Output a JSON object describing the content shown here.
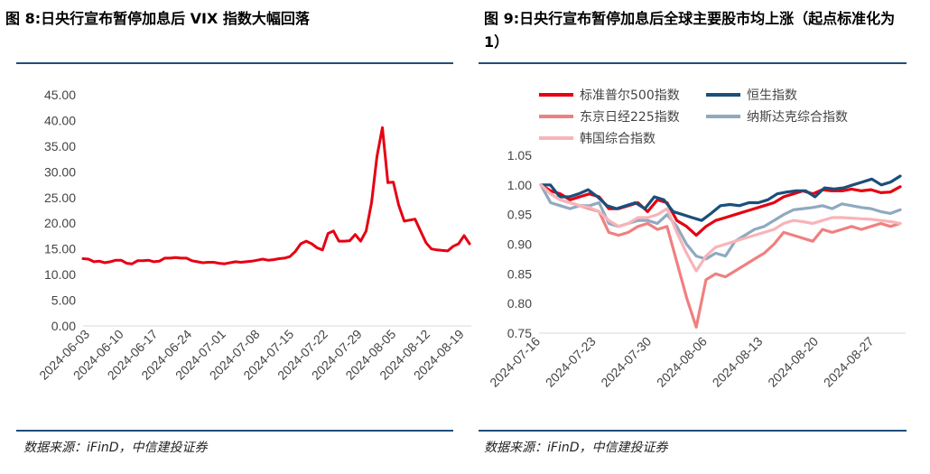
{
  "left": {
    "title": "图 8:日央行宣布暂停加息后 VIX 指数大幅回落",
    "source": "数据来源：iFinD，中信建投证券"
  },
  "right": {
    "title": "图 9:日央行宣布暂停加息后全球主要股市均上涨（起点标准化为 1）",
    "source": "数据来源：iFinD，中信建投证券"
  },
  "colors": {
    "rule": "#1f4e79"
  },
  "chart_data": [
    {
      "type": "line",
      "title": "",
      "ylim": [
        0,
        45
      ],
      "y_ticks": [
        "0.00",
        "5.00",
        "10.00",
        "15.00",
        "20.00",
        "25.00",
        "30.00",
        "35.00",
        "40.00",
        "45.00"
      ],
      "x_ticks": [
        "2024-06-03",
        "2024-06-10",
        "2024-06-17",
        "2024-06-24",
        "2024-07-01",
        "2024-07-08",
        "2024-07-15",
        "2024-07-22",
        "2024-07-29",
        "2024-08-05",
        "2024-08-12",
        "2024-08-19"
      ],
      "series": [
        {
          "color": "#e60012",
          "values": [
            13.1,
            13.0,
            12.5,
            12.6,
            12.3,
            12.5,
            12.8,
            12.8,
            12.2,
            12.1,
            12.7,
            12.7,
            12.8,
            12.5,
            12.6,
            13.2,
            13.2,
            13.3,
            13.2,
            13.2,
            12.7,
            12.5,
            12.3,
            12.4,
            12.4,
            12.2,
            12.1,
            12.3,
            12.5,
            12.4,
            12.5,
            12.6,
            12.8,
            13.0,
            12.8,
            12.9,
            13.1,
            13.2,
            13.5,
            14.5,
            16.0,
            16.5,
            16.0,
            15.2,
            14.8,
            18.0,
            18.5,
            16.5,
            16.5,
            16.6,
            17.8,
            16.5,
            18.5,
            24.0,
            33.0,
            38.6,
            27.9,
            28.0,
            23.5,
            20.4,
            20.6,
            20.8,
            18.5,
            16.2,
            15.0,
            14.8,
            14.7,
            14.6,
            15.5,
            16.0,
            17.6,
            16.0
          ]
        }
      ]
    },
    {
      "type": "line",
      "title": "",
      "ylim": [
        0.75,
        1.05
      ],
      "y_ticks": [
        "0.75",
        "0.80",
        "0.85",
        "0.90",
        "0.95",
        "1.00",
        "1.05"
      ],
      "x_ticks": [
        "2024-07-16",
        "2024-07-23",
        "2024-07-30",
        "2024-08-06",
        "2024-08-13",
        "2024-08-20",
        "2024-08-27"
      ],
      "legend": [
        "标准普尔500指数",
        "恒生指数",
        "东京日经225指数",
        "纳斯达克综合指数",
        "韩国综合指数"
      ],
      "series": [
        {
          "name": "标准普尔500指数",
          "color": "#e60012",
          "values": [
            1.0,
            0.99,
            0.985,
            0.975,
            0.98,
            0.985,
            0.98,
            0.96,
            0.96,
            0.965,
            0.97,
            0.955,
            0.975,
            0.97,
            0.94,
            0.93,
            0.915,
            0.93,
            0.94,
            0.945,
            0.95,
            0.955,
            0.96,
            0.965,
            0.97,
            0.98,
            0.985,
            0.99,
            0.985,
            0.992,
            0.99,
            0.99,
            0.993,
            0.99,
            0.992,
            0.987,
            0.988,
            0.997
          ]
        },
        {
          "name": "恒生指数",
          "color": "#1a4f7a",
          "values": [
            1.0,
            1.0,
            0.98,
            0.98,
            0.985,
            0.992,
            0.98,
            0.965,
            0.96,
            0.965,
            0.97,
            0.96,
            0.98,
            0.975,
            0.955,
            0.95,
            0.945,
            0.94,
            0.952,
            0.965,
            0.967,
            0.965,
            0.97,
            0.97,
            0.975,
            0.985,
            0.988,
            0.99,
            0.99,
            0.98,
            0.995,
            0.993,
            0.995,
            1.0,
            1.005,
            1.01,
            1.0,
            1.005,
            1.015
          ]
        },
        {
          "name": "东京日经225指数",
          "color": "#f08080",
          "values": [
            1.0,
            0.985,
            0.975,
            0.97,
            0.965,
            0.96,
            0.955,
            0.92,
            0.915,
            0.92,
            0.93,
            0.935,
            0.925,
            0.93,
            0.87,
            0.81,
            0.76,
            0.84,
            0.85,
            0.845,
            0.855,
            0.865,
            0.875,
            0.885,
            0.9,
            0.92,
            0.915,
            0.91,
            0.905,
            0.925,
            0.92,
            0.925,
            0.93,
            0.925,
            0.93,
            0.935,
            0.93,
            0.935
          ]
        },
        {
          "name": "纳斯达克综合指数",
          "color": "#8fa9c0",
          "values": [
            1.0,
            0.97,
            0.965,
            0.96,
            0.965,
            0.965,
            0.97,
            0.935,
            0.93,
            0.935,
            0.94,
            0.94,
            0.935,
            0.95,
            0.93,
            0.9,
            0.88,
            0.875,
            0.885,
            0.88,
            0.905,
            0.915,
            0.925,
            0.93,
            0.94,
            0.95,
            0.958,
            0.96,
            0.962,
            0.965,
            0.96,
            0.968,
            0.965,
            0.962,
            0.96,
            0.955,
            0.952,
            0.958
          ]
        },
        {
          "name": "韩国综合指数",
          "color": "#f8b4b8",
          "values": [
            1.0,
            0.985,
            0.975,
            0.97,
            0.965,
            0.962,
            0.955,
            0.94,
            0.93,
            0.935,
            0.945,
            0.945,
            0.95,
            0.96,
            0.92,
            0.885,
            0.855,
            0.88,
            0.895,
            0.9,
            0.905,
            0.91,
            0.915,
            0.92,
            0.925,
            0.935,
            0.94,
            0.938,
            0.935,
            0.94,
            0.945,
            0.945,
            0.944,
            0.943,
            0.942,
            0.94,
            0.938,
            0.935
          ]
        }
      ]
    }
  ]
}
